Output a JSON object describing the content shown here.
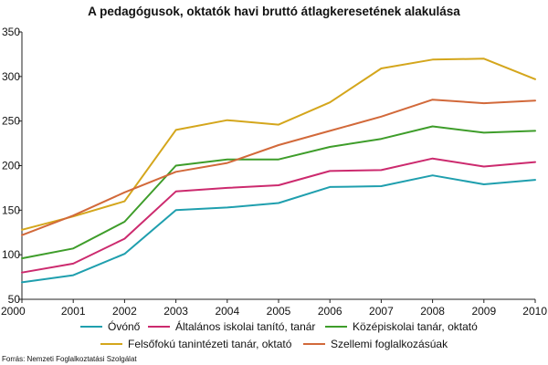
{
  "chart_data": {
    "type": "line",
    "title": "A pedagógusok, oktatók havi bruttó átlagkeresetének alakulása",
    "xlabel": "",
    "ylabel": "",
    "x": [
      "2000",
      "2001",
      "2002",
      "2003",
      "2004",
      "2005",
      "2006",
      "2007",
      "2008",
      "2009",
      "2010"
    ],
    "ylim": [
      50,
      350
    ],
    "yticks": [
      50,
      100,
      150,
      200,
      250,
      300,
      350
    ],
    "grid": false,
    "legend_position": "bottom",
    "series": [
      {
        "name": "Óvónő",
        "color": "#1f9fae",
        "values": [
          69,
          77,
          101,
          150,
          153,
          158,
          176,
          177,
          189,
          179,
          184
        ]
      },
      {
        "name": "Általános iskolai tanító, tanár",
        "color": "#cc2a6e",
        "values": [
          80,
          90,
          118,
          171,
          175,
          178,
          194,
          195,
          208,
          199,
          204
        ]
      },
      {
        "name": "Középiskolai tanár, oktató",
        "color": "#3e9d2a",
        "values": [
          96,
          107,
          137,
          200,
          207,
          207,
          221,
          230,
          244,
          237,
          239
        ]
      },
      {
        "name": "Felsőfokú tanintézeti tanár, oktató",
        "color": "#d4a61c",
        "values": [
          128,
          143,
          160,
          240,
          251,
          246,
          271,
          309,
          319,
          320,
          297
        ]
      },
      {
        "name": "Szellemi foglalkozásúak",
        "color": "#d2693a",
        "values": [
          122,
          144,
          170,
          193,
          203,
          223,
          239,
          255,
          274,
          270,
          273
        ]
      }
    ]
  },
  "source": "Forrás: Nemzeti Foglalkoztatási Szolgálat"
}
